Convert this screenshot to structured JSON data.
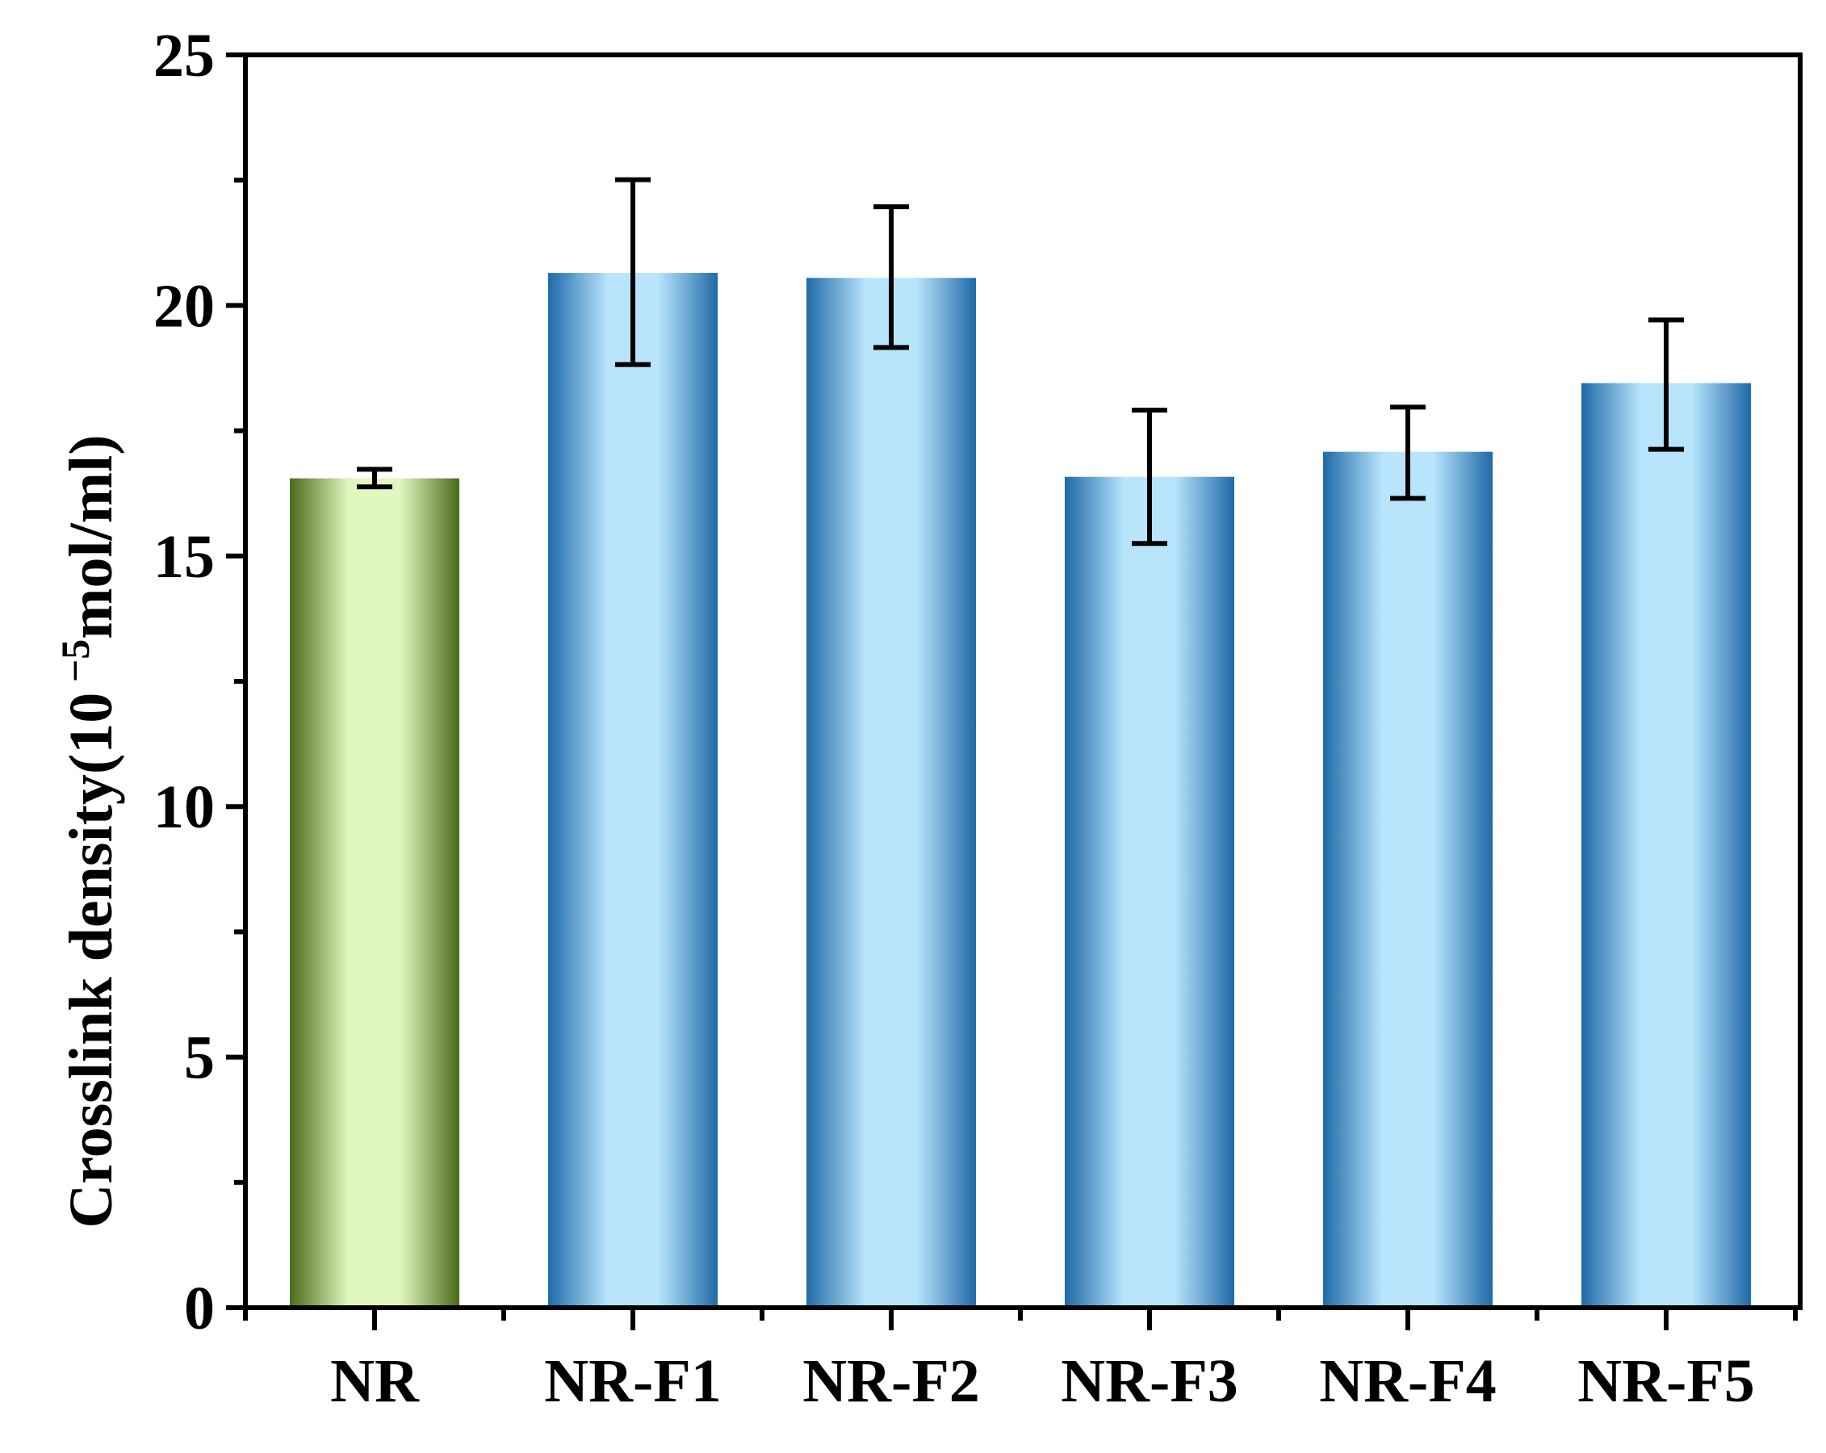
{
  "chart_data": {
    "type": "bar",
    "title": "",
    "xlabel": "",
    "ylabel": {
      "prefix": "Crosslink density(10",
      "superscript": " −5",
      "suffix": "mol/ml)"
    },
    "categories": [
      "NR",
      "NR-F1",
      "NR-F2",
      "NR-F3",
      "NR-F4",
      "NR-F5"
    ],
    "values": [
      16.55,
      20.65,
      20.55,
      16.58,
      17.08,
      18.45
    ],
    "error_low": [
      16.38,
      18.82,
      19.16,
      15.25,
      16.15,
      17.13
    ],
    "error_high": [
      16.73,
      22.51,
      21.97,
      17.91,
      17.97,
      19.71
    ],
    "ylim": [
      0,
      25
    ],
    "yticks": [
      0,
      5,
      10,
      15,
      20,
      25
    ],
    "yticks_minor": [
      2.5,
      7.5,
      12.5,
      17.5,
      22.5
    ],
    "grid": false,
    "legend": "none",
    "bar_colors": [
      {
        "edge": "#4a6b1a",
        "center": "#e0f8c0"
      },
      {
        "edge": "#1e6aa8",
        "center": "#b8e4fc"
      },
      {
        "edge": "#1e6aa8",
        "center": "#b8e4fc"
      },
      {
        "edge": "#1e6aa8",
        "center": "#b8e4fc"
      },
      {
        "edge": "#1e6aa8",
        "center": "#b8e4fc"
      },
      {
        "edge": "#1e6aa8",
        "center": "#b8e4fc"
      }
    ],
    "axis_color": "#000000"
  }
}
